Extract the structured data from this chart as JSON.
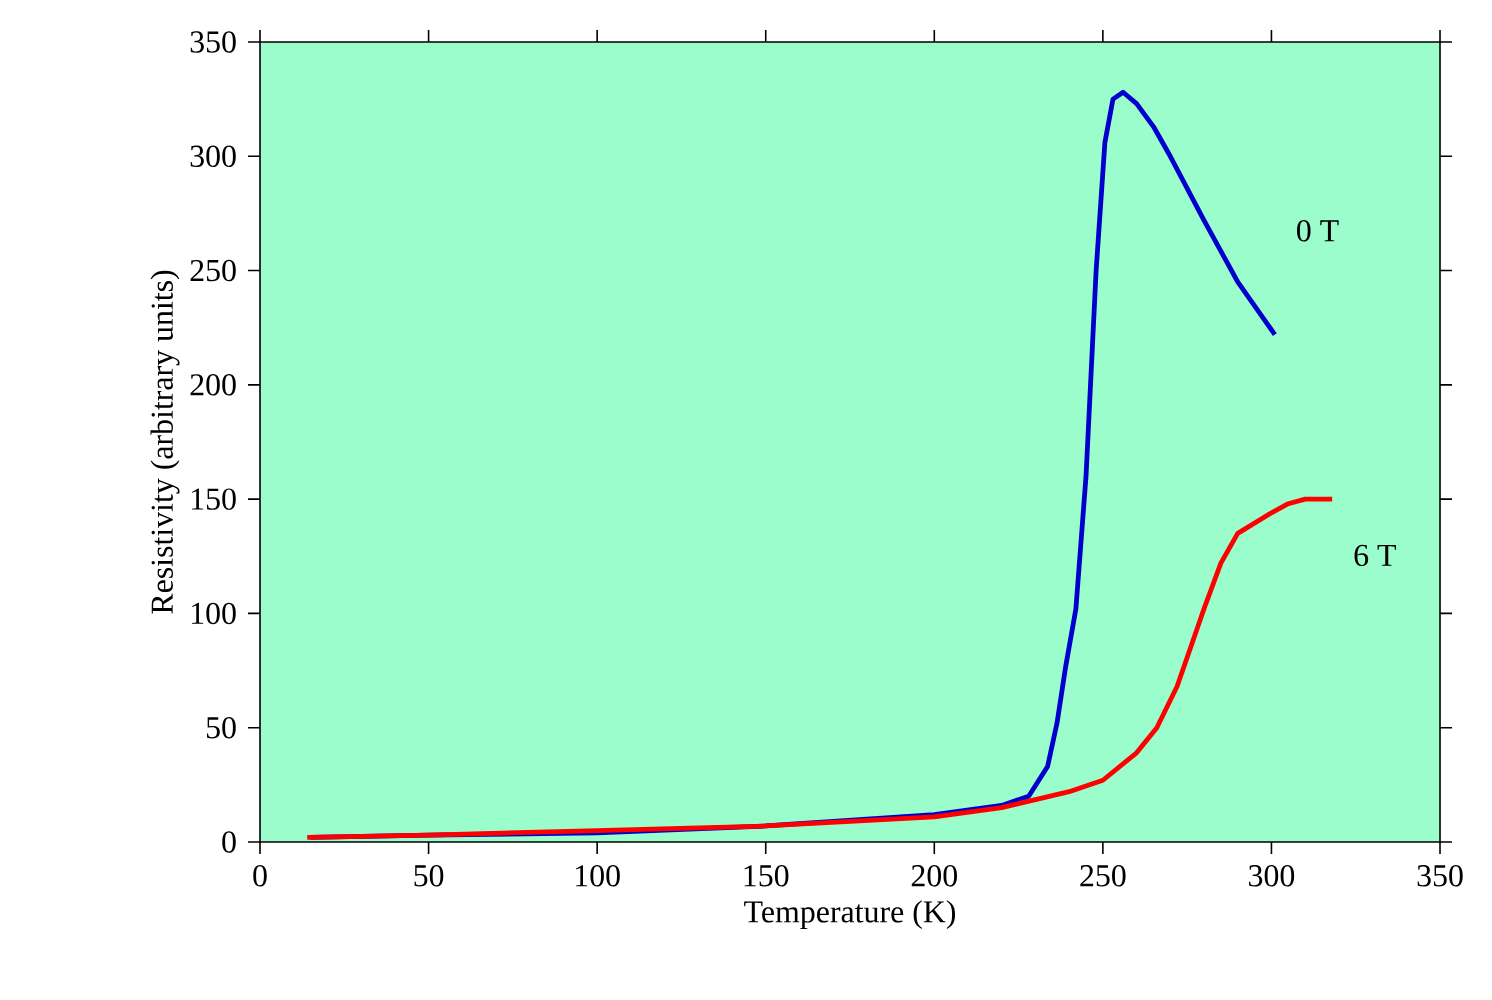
{
  "chart_data": {
    "type": "line",
    "xlabel": "Temperature (K)",
    "ylabel": "Resistivity (arbitrary units)",
    "xlim": [
      0,
      350
    ],
    "ylim": [
      0,
      350
    ],
    "xticks": [
      0,
      50,
      100,
      150,
      200,
      250,
      300,
      350
    ],
    "yticks": [
      0,
      50,
      100,
      150,
      200,
      250,
      300,
      350
    ],
    "grid": false,
    "legend": false,
    "marker": "none",
    "line_style": "solid",
    "series": [
      {
        "name": "0 T",
        "color": "#0000cc",
        "x": [
          15,
          50,
          100,
          150,
          200,
          220,
          228,
          233.6,
          236.4,
          239,
          242,
          245,
          248,
          250.6,
          253,
          256,
          260,
          265,
          270,
          280,
          290,
          301
        ],
        "values": [
          2,
          3,
          4,
          7,
          12,
          16,
          20,
          33,
          52,
          77,
          102,
          160,
          250,
          306,
          325,
          328,
          323,
          313,
          300,
          272,
          245,
          222
        ]
      },
      {
        "name": "6 T",
        "color": "#ff0000",
        "x": [
          14,
          50,
          100,
          150,
          200,
          220,
          240,
          250,
          260,
          266,
          272,
          276,
          280,
          285,
          290,
          300,
          305,
          310,
          318
        ],
        "values": [
          2,
          3,
          5,
          7,
          11,
          15,
          22,
          27,
          39,
          50,
          68,
          85,
          102,
          122,
          135,
          144,
          148,
          150,
          150
        ]
      }
    ]
  }
}
